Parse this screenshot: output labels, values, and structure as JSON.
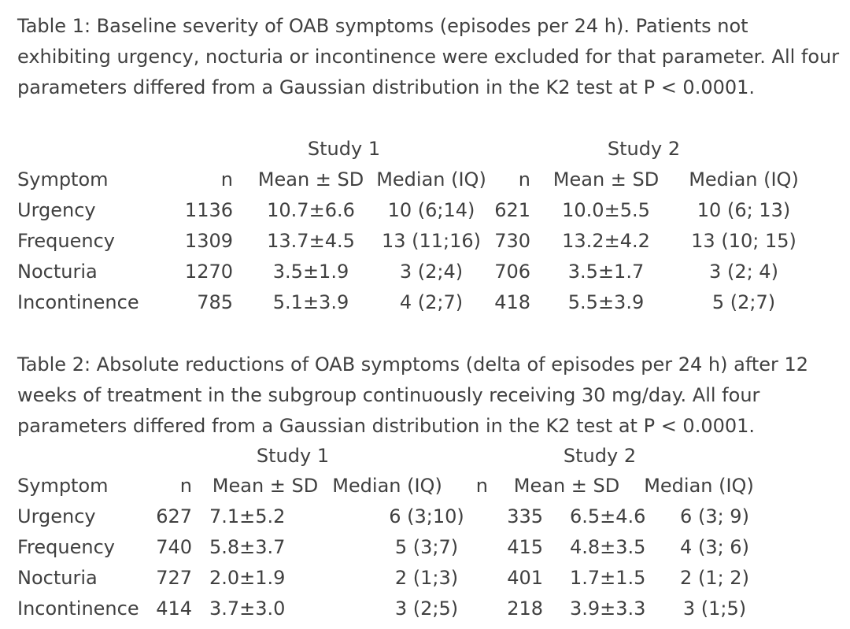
{
  "table1": {
    "caption": "Table 1: Baseline severity of OAB symptoms (episodes per 24 h). Patients not exhibiting urgency, nocturia or incontinence were excluded for that parameter. All four parameters differed from a Gaussian distribution in the K2 test at P < 0.0001.",
    "study1_label": "Study 1",
    "study2_label": "Study 2",
    "columns": [
      "Symptom",
      "n",
      "Mean ± SD",
      "Median (IQ)",
      "n",
      "Mean ± SD",
      "Median (IQ)"
    ],
    "rows": [
      [
        "Urgency",
        "1136",
        "10.7±6.6",
        "10 (6;14)",
        "621",
        "10.0±5.5",
        "10 (6; 13)"
      ],
      [
        "Frequency",
        "1309",
        "13.7±4.5",
        "13 (11;16)",
        "730",
        "13.2±4.2",
        "13 (10; 15)"
      ],
      [
        "Nocturia",
        "1270",
        "3.5±1.9",
        "3 (2;4)",
        "706",
        "3.5±1.7",
        "3 (2; 4)"
      ],
      [
        "Incontinence",
        "785",
        "5.1±3.9",
        "4 (2;7)",
        "418",
        "5.5±3.9",
        "5 (2;7)"
      ]
    ]
  },
  "table2": {
    "caption": "Table 2: Absolute reductions of OAB symptoms (delta of episodes per 24 h) after 12 weeks of treatment in the subgroup continuously receiving 30 mg/day. All four parameters differed from a Gaussian distribution in the K2 test at P < 0.0001.",
    "study1_label": "Study 1",
    "study2_label": "Study 2",
    "columns": [
      "Symptom",
      "n",
      "Mean ± SD",
      "Median (IQ)",
      "n",
      "Mean ± SD",
      "Median (IQ)"
    ],
    "rows": [
      [
        "Urgency",
        "627",
        "7.1±5.2",
        "6 (3;10)",
        "335",
        "6.5±4.6",
        "6 (3; 9)"
      ],
      [
        "Frequency",
        "740",
        "5.8±3.7",
        "5 (3;7)",
        "415",
        "4.8±3.5",
        "4 (3; 6)"
      ],
      [
        "Nocturia",
        "727",
        "2.0±1.9",
        "2 (1;3)",
        "401",
        "1.7±1.5",
        "2 (1; 2)"
      ],
      [
        "Incontinence",
        "414",
        "3.7±3.0",
        "3 (2;5)",
        "218",
        "3.9±3.3",
        "3 (1;5)"
      ]
    ]
  }
}
